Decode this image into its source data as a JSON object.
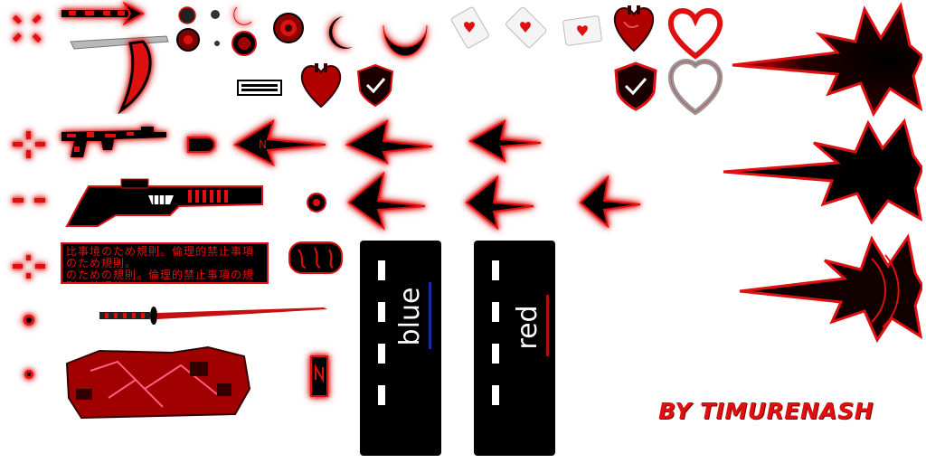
{
  "credit": {
    "text": "BY TIMURENASH"
  },
  "banners": [
    {
      "name": "blue",
      "label": "blue",
      "underline_color": "#1a2aa8"
    },
    {
      "name": "red",
      "label": "red",
      "underline_color": "#b01010"
    }
  ],
  "sprites": {
    "crosshairs": [
      "x-crosshair-icon",
      "cross-crosshair-icon",
      "dash-crosshair-icon",
      "bracket-crosshair-icon",
      "dot-crosshair-icon",
      "small-dot-crosshair-icon"
    ],
    "weapons": [
      "scythe-icon",
      "assault-rifle-icon",
      "shotgun-icon",
      "katana-icon",
      "glove-icon"
    ],
    "decorations": [
      "red-heart-icon",
      "shield-check-icon",
      "playing-card-icon",
      "crescent-icon",
      "red-orb-icon",
      "spiked-blast-icon"
    ]
  },
  "colors": {
    "accent": "#e01010",
    "dark": "#000000",
    "glow": "#ff1a1a"
  }
}
